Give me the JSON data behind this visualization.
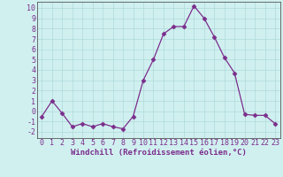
{
  "x": [
    0,
    1,
    2,
    3,
    4,
    5,
    6,
    7,
    8,
    9,
    10,
    11,
    12,
    13,
    14,
    15,
    16,
    17,
    18,
    19,
    20,
    21,
    22,
    23
  ],
  "y": [
    -0.5,
    1.0,
    -0.2,
    -1.5,
    -1.2,
    -1.5,
    -1.2,
    -1.5,
    -1.7,
    -0.5,
    3.0,
    5.0,
    7.5,
    8.2,
    8.2,
    10.2,
    9.0,
    7.2,
    5.2,
    3.7,
    -0.3,
    -0.4,
    -0.4,
    -1.2
  ],
  "line_color": "#7b2d8b",
  "marker": "D",
  "marker_size": 2.5,
  "bg_color": "#d0f0f0",
  "grid_color": "#b0d8d8",
  "xlabel": "Windchill (Refroidissement éolien,°C)",
  "xlabel_fontsize": 6.5,
  "tick_fontsize": 6,
  "xlim": [
    -0.5,
    23.5
  ],
  "ylim": [
    -2.6,
    10.6
  ],
  "yticks": [
    -2,
    -1,
    0,
    1,
    2,
    3,
    4,
    5,
    6,
    7,
    8,
    9,
    10
  ],
  "xticks": [
    0,
    1,
    2,
    3,
    4,
    5,
    6,
    7,
    8,
    9,
    10,
    11,
    12,
    13,
    14,
    15,
    16,
    17,
    18,
    19,
    20,
    21,
    22,
    23
  ],
  "spine_color": "#555555",
  "text_color": "#7b2d8b"
}
